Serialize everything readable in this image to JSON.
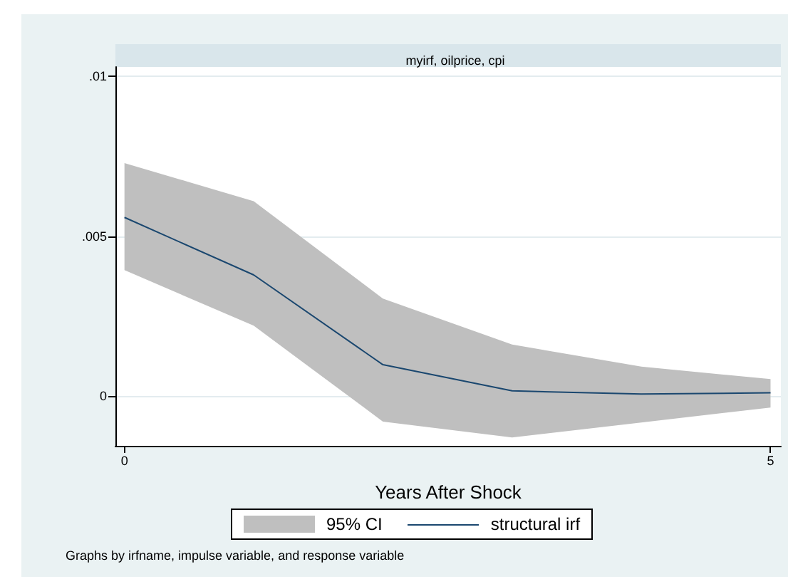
{
  "chart_data": {
    "type": "line",
    "title": "myirf, oilprice, cpi",
    "xlabel": "Years After Shock",
    "annotations": [
      "95% CI",
      "Graphs by irfname, impulse variable, and response variable"
    ],
    "x": [
      0,
      1,
      2,
      3,
      4,
      5
    ],
    "series": [
      {
        "name": "structural irf",
        "color": "#1a476f",
        "values": [
          0.00559,
          0.00379,
          0.00098,
          0.00016,
          6e-05,
          0.0001
        ],
        "lower": [
          0.00394,
          0.0022,
          -0.0008,
          -0.0013,
          -0.00083,
          -0.00036
        ],
        "upper": [
          0.00729,
          0.0061,
          0.00305,
          0.00161,
          0.00092,
          0.00053
        ]
      }
    ],
    "xlim": [
      -0.07,
      5.08
    ],
    "xticks": [
      0,
      5
    ],
    "ylim": [
      -0.00156,
      0.0103
    ],
    "yticks": [
      {
        "value": 0,
        "label": "0"
      },
      {
        "value": 0.005,
        "label": ".005"
      },
      {
        "value": 0.01,
        "label": ".01"
      }
    ],
    "grid": "y",
    "legend": "bottom",
    "marker": "none",
    "line_style": "solid"
  }
}
